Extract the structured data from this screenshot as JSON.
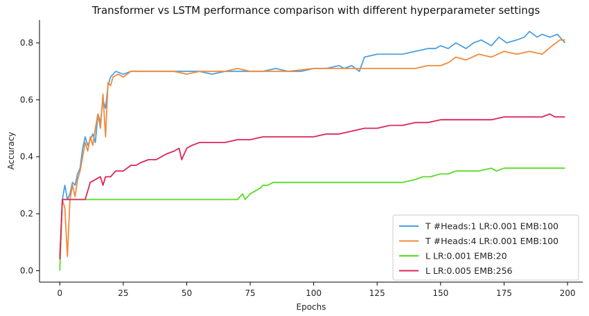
{
  "chart_data": {
    "type": "line",
    "title": "Transformer vs LSTM performance comparison with different hyperparameter settings",
    "xlabel": "Epochs",
    "ylabel": "Accuracy",
    "xlim": [
      -8,
      206
    ],
    "ylim": [
      -0.04,
      0.88
    ],
    "xticks": [
      0,
      25,
      50,
      75,
      100,
      125,
      150,
      175,
      200
    ],
    "yticks": [
      0.0,
      0.2,
      0.4,
      0.6,
      0.8
    ],
    "xtick_labels": [
      "0",
      "25",
      "50",
      "75",
      "100",
      "125",
      "150",
      "175",
      "200"
    ],
    "ytick_labels": [
      "0.0",
      "0.2",
      "0.4",
      "0.6",
      "0.8"
    ],
    "grid": false,
    "legend_position": "lower-right",
    "series": [
      {
        "name": "T #Heads:1 LR:0.001 EMB:100",
        "color": "#4a9fe0",
        "points": [
          [
            0,
            0.04
          ],
          [
            1,
            0.25
          ],
          [
            2,
            0.3
          ],
          [
            3,
            0.25
          ],
          [
            4,
            0.27
          ],
          [
            5,
            0.31
          ],
          [
            6,
            0.3
          ],
          [
            7,
            0.34
          ],
          [
            8,
            0.36
          ],
          [
            9,
            0.43
          ],
          [
            10,
            0.47
          ],
          [
            11,
            0.44
          ],
          [
            12,
            0.46
          ],
          [
            13,
            0.48
          ],
          [
            14,
            0.45
          ],
          [
            15,
            0.55
          ],
          [
            16,
            0.52
          ],
          [
            17,
            0.6
          ],
          [
            18,
            0.57
          ],
          [
            19,
            0.65
          ],
          [
            20,
            0.68
          ],
          [
            22,
            0.7
          ],
          [
            25,
            0.69
          ],
          [
            28,
            0.7
          ],
          [
            35,
            0.7
          ],
          [
            45,
            0.7
          ],
          [
            55,
            0.7
          ],
          [
            60,
            0.69
          ],
          [
            65,
            0.7
          ],
          [
            70,
            0.7
          ],
          [
            75,
            0.7
          ],
          [
            80,
            0.7
          ],
          [
            85,
            0.71
          ],
          [
            90,
            0.7
          ],
          [
            95,
            0.7
          ],
          [
            100,
            0.71
          ],
          [
            105,
            0.71
          ],
          [
            110,
            0.72
          ],
          [
            112,
            0.71
          ],
          [
            115,
            0.72
          ],
          [
            118,
            0.7
          ],
          [
            120,
            0.75
          ],
          [
            125,
            0.76
          ],
          [
            130,
            0.76
          ],
          [
            135,
            0.76
          ],
          [
            140,
            0.77
          ],
          [
            145,
            0.78
          ],
          [
            148,
            0.78
          ],
          [
            150,
            0.79
          ],
          [
            153,
            0.78
          ],
          [
            156,
            0.8
          ],
          [
            160,
            0.78
          ],
          [
            163,
            0.8
          ],
          [
            166,
            0.81
          ],
          [
            170,
            0.79
          ],
          [
            173,
            0.82
          ],
          [
            176,
            0.8
          ],
          [
            180,
            0.81
          ],
          [
            183,
            0.82
          ],
          [
            185,
            0.84
          ],
          [
            188,
            0.82
          ],
          [
            190,
            0.83
          ],
          [
            193,
            0.82
          ],
          [
            196,
            0.83
          ],
          [
            198,
            0.81
          ],
          [
            199,
            0.8
          ]
        ]
      },
      {
        "name": "T #Heads:4 LR:0.001 EMB:100",
        "color": "#f2893a",
        "points": [
          [
            0,
            0.05
          ],
          [
            1,
            0.25
          ],
          [
            2,
            0.22
          ],
          [
            3,
            0.05
          ],
          [
            4,
            0.25
          ],
          [
            5,
            0.3
          ],
          [
            6,
            0.26
          ],
          [
            7,
            0.32
          ],
          [
            8,
            0.35
          ],
          [
            9,
            0.4
          ],
          [
            10,
            0.45
          ],
          [
            11,
            0.42
          ],
          [
            12,
            0.47
          ],
          [
            13,
            0.44
          ],
          [
            14,
            0.5
          ],
          [
            15,
            0.55
          ],
          [
            16,
            0.5
          ],
          [
            17,
            0.62
          ],
          [
            18,
            0.47
          ],
          [
            19,
            0.66
          ],
          [
            20,
            0.65
          ],
          [
            21,
            0.68
          ],
          [
            23,
            0.69
          ],
          [
            25,
            0.68
          ],
          [
            28,
            0.7
          ],
          [
            35,
            0.7
          ],
          [
            45,
            0.7
          ],
          [
            50,
            0.69
          ],
          [
            55,
            0.7
          ],
          [
            65,
            0.7
          ],
          [
            70,
            0.71
          ],
          [
            75,
            0.7
          ],
          [
            80,
            0.7
          ],
          [
            90,
            0.7
          ],
          [
            100,
            0.71
          ],
          [
            110,
            0.71
          ],
          [
            120,
            0.71
          ],
          [
            130,
            0.71
          ],
          [
            140,
            0.71
          ],
          [
            145,
            0.72
          ],
          [
            150,
            0.72
          ],
          [
            153,
            0.73
          ],
          [
            156,
            0.75
          ],
          [
            160,
            0.74
          ],
          [
            165,
            0.76
          ],
          [
            170,
            0.75
          ],
          [
            175,
            0.77
          ],
          [
            180,
            0.76
          ],
          [
            185,
            0.77
          ],
          [
            190,
            0.76
          ],
          [
            194,
            0.79
          ],
          [
            197,
            0.81
          ],
          [
            199,
            0.81
          ]
        ]
      },
      {
        "name": "L LR:0.001 EMB:20",
        "color": "#55dd22",
        "points": [
          [
            0,
            0.0
          ],
          [
            1,
            0.25
          ],
          [
            10,
            0.25
          ],
          [
            20,
            0.25
          ],
          [
            40,
            0.25
          ],
          [
            60,
            0.25
          ],
          [
            70,
            0.25
          ],
          [
            71,
            0.26
          ],
          [
            72,
            0.27
          ],
          [
            73,
            0.25
          ],
          [
            75,
            0.27
          ],
          [
            77,
            0.28
          ],
          [
            79,
            0.29
          ],
          [
            80,
            0.3
          ],
          [
            82,
            0.3
          ],
          [
            84,
            0.31
          ],
          [
            85,
            0.31
          ],
          [
            95,
            0.31
          ],
          [
            105,
            0.31
          ],
          [
            115,
            0.31
          ],
          [
            125,
            0.31
          ],
          [
            135,
            0.31
          ],
          [
            140,
            0.32
          ],
          [
            143,
            0.33
          ],
          [
            146,
            0.33
          ],
          [
            150,
            0.34
          ],
          [
            153,
            0.34
          ],
          [
            156,
            0.35
          ],
          [
            160,
            0.35
          ],
          [
            165,
            0.35
          ],
          [
            170,
            0.36
          ],
          [
            172,
            0.35
          ],
          [
            175,
            0.36
          ],
          [
            180,
            0.36
          ],
          [
            190,
            0.36
          ],
          [
            199,
            0.36
          ]
        ]
      },
      {
        "name": "L LR:0.005 EMB:256",
        "color": "#dc2456",
        "points": [
          [
            0,
            0.04
          ],
          [
            1,
            0.25
          ],
          [
            5,
            0.25
          ],
          [
            10,
            0.25
          ],
          [
            12,
            0.31
          ],
          [
            14,
            0.32
          ],
          [
            16,
            0.33
          ],
          [
            17,
            0.3
          ],
          [
            18,
            0.33
          ],
          [
            20,
            0.33
          ],
          [
            22,
            0.35
          ],
          [
            25,
            0.35
          ],
          [
            28,
            0.37
          ],
          [
            30,
            0.37
          ],
          [
            32,
            0.38
          ],
          [
            35,
            0.39
          ],
          [
            38,
            0.39
          ],
          [
            40,
            0.4
          ],
          [
            42,
            0.41
          ],
          [
            45,
            0.42
          ],
          [
            47,
            0.43
          ],
          [
            48,
            0.39
          ],
          [
            50,
            0.43
          ],
          [
            52,
            0.44
          ],
          [
            55,
            0.45
          ],
          [
            60,
            0.45
          ],
          [
            65,
            0.45
          ],
          [
            70,
            0.46
          ],
          [
            75,
            0.46
          ],
          [
            80,
            0.47
          ],
          [
            85,
            0.47
          ],
          [
            90,
            0.47
          ],
          [
            95,
            0.47
          ],
          [
            100,
            0.47
          ],
          [
            105,
            0.48
          ],
          [
            110,
            0.48
          ],
          [
            115,
            0.49
          ],
          [
            120,
            0.5
          ],
          [
            125,
            0.5
          ],
          [
            130,
            0.51
          ],
          [
            135,
            0.51
          ],
          [
            140,
            0.52
          ],
          [
            145,
            0.52
          ],
          [
            150,
            0.53
          ],
          [
            155,
            0.53
          ],
          [
            160,
            0.53
          ],
          [
            165,
            0.53
          ],
          [
            170,
            0.53
          ],
          [
            175,
            0.54
          ],
          [
            180,
            0.54
          ],
          [
            185,
            0.54
          ],
          [
            190,
            0.54
          ],
          [
            193,
            0.55
          ],
          [
            195,
            0.54
          ],
          [
            199,
            0.54
          ]
        ]
      }
    ]
  }
}
